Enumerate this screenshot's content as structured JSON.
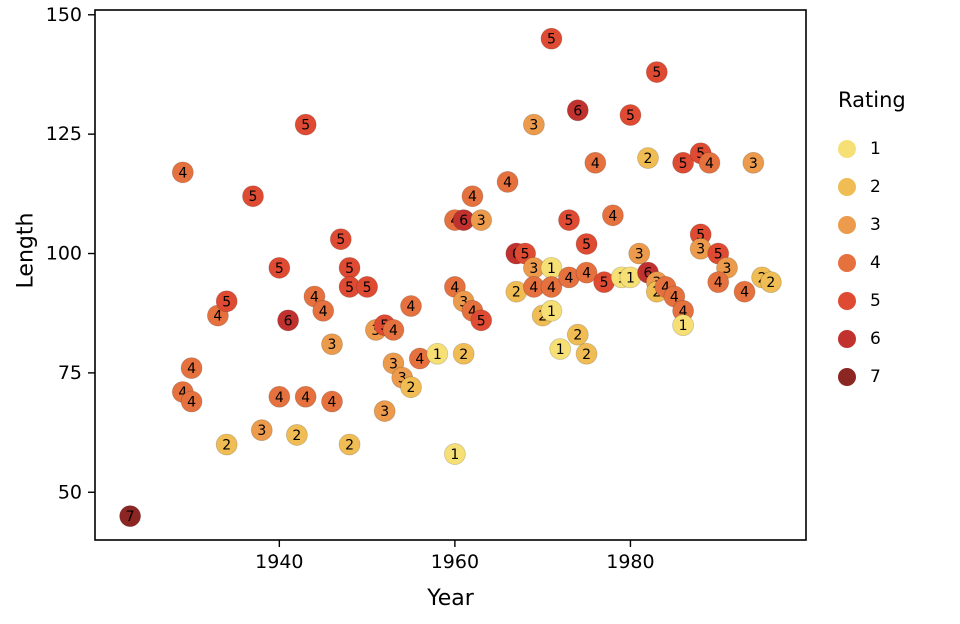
{
  "chart_data": {
    "type": "scatter",
    "title": "",
    "xlabel": "Year",
    "ylabel": "Length",
    "x_ticks": [
      1940,
      1960,
      1980
    ],
    "y_ticks": [
      50,
      75,
      100,
      125,
      150
    ],
    "x_domain": [
      1919,
      2000
    ],
    "y_domain": [
      40,
      151
    ],
    "grid": false,
    "legend": {
      "title": "Rating",
      "position": "right",
      "entries": [
        "1",
        "2",
        "3",
        "4",
        "5",
        "6",
        "7"
      ]
    },
    "palette": {
      "1": "#F6E076",
      "2": "#F0BC54",
      "3": "#EC9A4B",
      "4": "#E5713E",
      "5": "#DF4B32",
      "6": "#C1322F",
      "7": "#8C2623"
    },
    "point_label_is_rating": true,
    "points": [
      [
        1923,
        45,
        7
      ],
      [
        1929,
        117,
        4
      ],
      [
        1937,
        112,
        5
      ],
      [
        1930,
        76,
        4
      ],
      [
        1929,
        71,
        4
      ],
      [
        1930,
        69,
        4
      ],
      [
        1933,
        87,
        4
      ],
      [
        1934,
        90,
        5
      ],
      [
        1934,
        60,
        2
      ],
      [
        1940,
        97,
        5
      ],
      [
        1941,
        86,
        6
      ],
      [
        1943,
        127,
        5
      ],
      [
        1940,
        70,
        4
      ],
      [
        1943,
        70,
        4
      ],
      [
        1938,
        63,
        3
      ],
      [
        1942,
        62,
        2
      ],
      [
        1944,
        91,
        4
      ],
      [
        1945,
        88,
        4
      ],
      [
        1946,
        81,
        3
      ],
      [
        1946,
        69,
        4
      ],
      [
        1948,
        60,
        2
      ],
      [
        1947,
        103,
        5
      ],
      [
        1948,
        97,
        5
      ],
      [
        1948,
        93,
        5
      ],
      [
        1950,
        93,
        5
      ],
      [
        1951,
        84,
        3
      ],
      [
        1952,
        85,
        5
      ],
      [
        1953,
        84,
        4
      ],
      [
        1953,
        77,
        3
      ],
      [
        1952,
        67,
        3
      ],
      [
        1955,
        89,
        4
      ],
      [
        1954,
        74,
        3
      ],
      [
        1955,
        72,
        2
      ],
      [
        1956,
        78,
        4
      ],
      [
        1958,
        79,
        1
      ],
      [
        1960,
        58,
        1
      ],
      [
        1961,
        79,
        2
      ],
      [
        1960,
        93,
        4
      ],
      [
        1961,
        90,
        3
      ],
      [
        1962,
        88,
        4
      ],
      [
        1963,
        86,
        5
      ],
      [
        1960,
        107,
        4
      ],
      [
        1961,
        107,
        6
      ],
      [
        1963,
        107,
        3
      ],
      [
        1962,
        112,
        4
      ],
      [
        1966,
        115,
        4
      ],
      [
        1967,
        100,
        6
      ],
      [
        1968,
        100,
        5
      ],
      [
        1969,
        127,
        3
      ],
      [
        1971,
        145,
        5
      ],
      [
        1967,
        92,
        2
      ],
      [
        1969,
        97,
        3
      ],
      [
        1971,
        97,
        1
      ],
      [
        1969,
        93,
        4
      ],
      [
        1971,
        93,
        4
      ],
      [
        1973,
        95,
        4
      ],
      [
        1970,
        87,
        2
      ],
      [
        1971,
        88,
        1
      ],
      [
        1972,
        80,
        1
      ],
      [
        1974,
        83,
        2
      ],
      [
        1975,
        79,
        2
      ],
      [
        1974,
        130,
        6
      ],
      [
        1976,
        119,
        4
      ],
      [
        1973,
        107,
        5
      ],
      [
        1975,
        102,
        5
      ],
      [
        1975,
        96,
        4
      ],
      [
        1977,
        94,
        5
      ],
      [
        1978,
        108,
        4
      ],
      [
        1979,
        95,
        1
      ],
      [
        1980,
        95,
        1
      ],
      [
        1980,
        129,
        5
      ],
      [
        1981,
        100,
        3
      ],
      [
        1982,
        96,
        6
      ],
      [
        1983,
        94,
        3
      ],
      [
        1983,
        92,
        2
      ],
      [
        1984,
        93,
        4
      ],
      [
        1985,
        91,
        4
      ],
      [
        1986,
        88,
        4
      ],
      [
        1986,
        85,
        1
      ],
      [
        1983,
        138,
        5
      ],
      [
        1982,
        120,
        2
      ],
      [
        1986,
        119,
        5
      ],
      [
        1988,
        121,
        5
      ],
      [
        1989,
        119,
        4
      ],
      [
        1994,
        119,
        3
      ],
      [
        1988,
        104,
        5
      ],
      [
        1988,
        101,
        3
      ],
      [
        1990,
        100,
        5
      ],
      [
        1991,
        97,
        3
      ],
      [
        1990,
        94,
        4
      ],
      [
        1993,
        92,
        4
      ],
      [
        1995,
        95,
        2
      ],
      [
        1996,
        94,
        2
      ]
    ]
  }
}
